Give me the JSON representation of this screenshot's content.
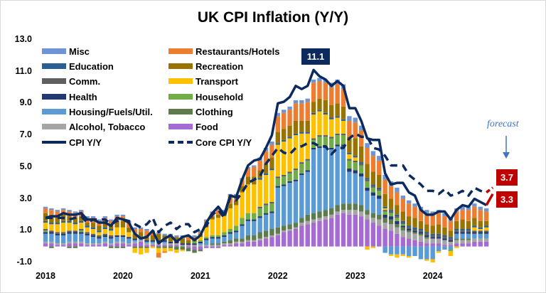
{
  "chart_data": {
    "type": "bar",
    "title": "UK CPI Inflation (Y/Y)",
    "xlabel": "",
    "ylabel": "",
    "ylim": [
      -1.0,
      13.0
    ],
    "yticks": [
      "13.0",
      "11.0",
      "9.0",
      "7.0",
      "5.0",
      "3.0",
      "1.0",
      "-1.0"
    ],
    "ytick_values": [
      13,
      11,
      9,
      7,
      5,
      3,
      1,
      -1
    ],
    "xtick_labels": [
      "2018",
      "2020",
      "2021",
      "2022",
      "2023",
      "2024"
    ],
    "xtick_category_index": [
      0,
      13,
      26,
      39,
      52,
      65
    ],
    "grid": false,
    "legend_position": "top-left",
    "stacked": true,
    "series": [
      {
        "name": "Food",
        "color": "#a66bd3",
        "values": [
          0.2,
          0.2,
          0.1,
          0.1,
          0.2,
          0.2,
          0.2,
          0.1,
          0.1,
          0.1,
          0.2,
          0.1,
          0.2,
          0.2,
          0.1,
          0.2,
          0.3,
          0.1,
          0.1,
          0.1,
          0.1,
          0.1,
          0.1,
          0.0,
          -0.1,
          -0.2,
          -0.2,
          -0.1,
          -0.1,
          -0.1,
          0.1,
          0.1,
          0.2,
          0.2,
          0.3,
          0.3,
          0.4,
          0.5,
          0.6,
          0.7,
          0.9,
          1.0,
          1.1,
          1.3,
          1.4,
          1.5,
          1.6,
          1.7,
          1.8,
          2.0,
          2.1,
          2.0,
          2.0,
          1.9,
          1.7,
          1.5,
          1.3,
          1.1,
          1.0,
          0.8,
          0.6,
          0.5,
          0.4,
          0.3,
          0.2,
          0.2,
          0.2,
          0.1,
          0.1,
          0.2,
          0.2,
          0.2,
          0.3,
          0.3,
          0.3
        ]
      },
      {
        "name": "Alcohol, Tobacco",
        "color": "#a5a5a5",
        "values": [
          0.1,
          0.1,
          0.1,
          0.1,
          0.1,
          0.1,
          0.1,
          0.1,
          0.1,
          0.1,
          0.1,
          0.1,
          0.1,
          0.1,
          0.1,
          0.1,
          0.1,
          0.1,
          0.1,
          0.1,
          0.1,
          0.1,
          0.1,
          0.1,
          0.1,
          0.1,
          0.1,
          0.1,
          0.1,
          0.1,
          0.1,
          0.1,
          0.1,
          0.1,
          0.1,
          0.1,
          0.1,
          0.1,
          0.1,
          0.1,
          0.1,
          0.1,
          0.1,
          0.2,
          0.2,
          0.2,
          0.2,
          0.2,
          0.2,
          0.2,
          0.2,
          0.3,
          0.3,
          0.3,
          0.3,
          0.3,
          0.4,
          0.4,
          0.4,
          0.4,
          0.4,
          0.4,
          0.4,
          0.4,
          0.3,
          0.3,
          0.3,
          0.3,
          0.2,
          0.2,
          0.2,
          0.2,
          0.2,
          0.2,
          0.2
        ]
      },
      {
        "name": "Clothing",
        "color": "#5e7b4e",
        "values": [
          0.0,
          -0.1,
          0.0,
          0.0,
          -0.1,
          -0.1,
          0.0,
          0.0,
          0.0,
          0.0,
          0.0,
          -0.1,
          -0.1,
          -0.1,
          0.0,
          -0.1,
          -0.1,
          -0.1,
          0.0,
          -0.1,
          -0.1,
          -0.1,
          -0.2,
          -0.2,
          -0.2,
          -0.2,
          -0.1,
          0.0,
          0.1,
          0.1,
          0.1,
          0.2,
          0.2,
          0.2,
          0.3,
          0.3,
          0.4,
          0.4,
          0.4,
          0.4,
          0.3,
          0.3,
          0.3,
          0.3,
          0.4,
          0.4,
          0.4,
          0.4,
          0.4,
          0.4,
          0.4,
          0.4,
          0.4,
          0.4,
          0.3,
          0.3,
          0.3,
          0.3,
          0.3,
          0.2,
          0.2,
          0.1,
          0.1,
          0.1,
          0.1,
          0.0,
          0.0,
          0.0,
          0.0,
          0.1,
          0.1,
          0.1,
          0.0,
          0.0,
          0.0
        ]
      },
      {
        "name": "Housing/Fuels/Util.",
        "color": "#5b9bd5",
        "values": [
          0.5,
          0.5,
          0.5,
          0.5,
          0.5,
          0.5,
          0.5,
          0.5,
          0.4,
          0.3,
          0.3,
          0.3,
          0.3,
          0.3,
          0.3,
          0.1,
          0.1,
          0.1,
          0.1,
          0.1,
          0.1,
          0.0,
          0.0,
          0.0,
          0.0,
          0.0,
          0.1,
          0.3,
          0.3,
          0.3,
          0.3,
          0.4,
          0.4,
          0.8,
          0.9,
          0.9,
          0.9,
          1.0,
          1.0,
          2.5,
          2.5,
          2.6,
          2.6,
          2.7,
          2.7,
          4.0,
          4.0,
          3.9,
          3.7,
          3.7,
          3.6,
          2.0,
          1.9,
          1.8,
          1.2,
          1.1,
          1.0,
          -0.4,
          -0.5,
          -0.5,
          -0.5,
          -0.6,
          -0.6,
          -0.8,
          -0.8,
          -0.8,
          -0.3,
          -0.2,
          -0.2,
          0.3,
          0.3,
          0.3,
          0.3,
          0.3,
          0.3
        ]
      },
      {
        "name": "Health",
        "color": "#23386e",
        "values": [
          0.1,
          0.1,
          0.1,
          0.1,
          0.1,
          0.1,
          0.1,
          0.1,
          0.1,
          0.1,
          0.1,
          0.1,
          0.1,
          0.1,
          0.1,
          0.1,
          0.1,
          0.1,
          0.1,
          0.1,
          0.1,
          0.1,
          0.1,
          0.1,
          0.1,
          0.1,
          0.1,
          0.1,
          0.1,
          0.1,
          0.1,
          0.1,
          0.1,
          0.1,
          0.1,
          0.1,
          0.1,
          0.1,
          0.1,
          0.1,
          0.1,
          0.1,
          0.1,
          0.1,
          0.1,
          0.1,
          0.1,
          0.1,
          0.1,
          0.1,
          0.1,
          0.2,
          0.2,
          0.2,
          0.2,
          0.2,
          0.2,
          0.2,
          0.2,
          0.2,
          0.1,
          0.1,
          0.1,
          0.1,
          0.1,
          0.1,
          0.1,
          0.1,
          0.1,
          0.1,
          0.1,
          0.1,
          0.1,
          0.1,
          0.1
        ]
      },
      {
        "name": "Household",
        "color": "#70ad47",
        "values": [
          0.1,
          0.0,
          0.0,
          0.0,
          0.0,
          0.0,
          0.1,
          0.0,
          0.0,
          0.0,
          0.0,
          0.0,
          0.0,
          0.0,
          0.0,
          0.0,
          0.0,
          0.0,
          0.0,
          0.0,
          0.0,
          0.0,
          0.0,
          0.0,
          0.0,
          0.1,
          0.1,
          0.1,
          0.1,
          0.1,
          0.2,
          0.2,
          0.3,
          0.4,
          0.4,
          0.4,
          0.5,
          0.5,
          0.5,
          0.5,
          0.5,
          0.5,
          0.6,
          0.6,
          0.6,
          0.5,
          0.6,
          0.6,
          0.6,
          0.6,
          0.6,
          0.5,
          0.5,
          0.5,
          0.4,
          0.3,
          0.3,
          0.2,
          0.2,
          0.2,
          0.1,
          0.0,
          0.0,
          0.0,
          0.0,
          0.0,
          0.0,
          0.0,
          -0.1,
          0.0,
          0.0,
          0.0,
          0.0,
          0.0,
          0.0
        ]
      },
      {
        "name": "Comm.",
        "color": "#5f5f5f",
        "values": [
          0.1,
          0.1,
          0.1,
          0.1,
          0.1,
          0.1,
          0.1,
          0.1,
          0.1,
          0.1,
          0.1,
          0.1,
          0.0,
          0.0,
          0.0,
          0.0,
          0.0,
          0.0,
          0.0,
          0.0,
          0.0,
          0.0,
          0.0,
          0.0,
          0.0,
          0.0,
          0.0,
          0.0,
          0.0,
          0.0,
          0.0,
          0.0,
          0.0,
          0.0,
          0.0,
          0.0,
          0.1,
          0.1,
          0.1,
          0.1,
          0.1,
          0.1,
          0.1,
          0.1,
          0.1,
          0.1,
          0.1,
          0.1,
          0.1,
          0.1,
          0.1,
          0.1,
          0.1,
          0.1,
          0.1,
          0.1,
          0.1,
          0.1,
          0.1,
          0.1,
          0.1,
          0.1,
          0.1,
          0.1,
          0.1,
          0.1,
          0.1,
          0.1,
          0.1,
          0.1,
          0.1,
          0.1,
          0.1,
          0.1,
          0.1
        ]
      },
      {
        "name": "Transport",
        "color": "#ffc000",
        "values": [
          0.4,
          0.4,
          0.5,
          0.6,
          0.5,
          0.4,
          0.4,
          0.3,
          0.3,
          0.2,
          0.3,
          0.3,
          0.5,
          0.5,
          0.3,
          -0.3,
          -0.4,
          -0.3,
          -0.1,
          -0.3,
          -0.2,
          -0.2,
          -0.2,
          -0.1,
          0.0,
          0.0,
          0.2,
          0.6,
          1.0,
          1.1,
          1.0,
          1.3,
          1.3,
          1.6,
          1.8,
          1.8,
          1.7,
          1.8,
          2.0,
          2.0,
          2.1,
          2.1,
          2.1,
          1.8,
          1.6,
          1.5,
          1.5,
          1.3,
          1.1,
          1.0,
          0.8,
          0.3,
          0.2,
          0.0,
          -0.2,
          -0.1,
          0.0,
          0.1,
          -0.1,
          -0.2,
          -0.1,
          -0.1,
          0.0,
          0.0,
          -0.1,
          -0.2,
          -0.1,
          0.0,
          -0.3,
          -0.1,
          0.0,
          0.0,
          0.2,
          0.1,
          0.2
        ]
      },
      {
        "name": "Education",
        "color": "#2a5f94",
        "values": [
          0.1,
          0.1,
          0.1,
          0.1,
          0.1,
          0.1,
          0.1,
          0.1,
          0.1,
          0.1,
          0.1,
          0.1,
          0.0,
          0.0,
          0.0,
          0.0,
          0.0,
          0.0,
          0.0,
          0.0,
          0.0,
          0.0,
          0.0,
          0.0,
          0.0,
          0.0,
          0.0,
          0.0,
          0.0,
          0.0,
          0.0,
          0.0,
          0.0,
          0.0,
          0.0,
          0.0,
          0.1,
          0.1,
          0.1,
          0.1,
          0.1,
          0.1,
          0.1,
          0.1,
          0.1,
          0.1,
          0.1,
          0.1,
          0.1,
          0.1,
          0.1,
          0.1,
          0.1,
          0.1,
          0.1,
          0.1,
          0.1,
          0.1,
          0.1,
          0.1,
          0.1,
          0.1,
          0.1,
          0.1,
          0.1,
          0.1,
          0.1,
          0.1,
          0.1,
          0.1,
          0.1,
          0.1,
          0.1,
          0.1,
          0.1
        ]
      },
      {
        "name": "Recreation",
        "color": "#997300",
        "values": [
          0.5,
          0.5,
          0.4,
          0.4,
          0.3,
          0.3,
          0.3,
          0.2,
          0.3,
          0.3,
          0.3,
          0.2,
          0.4,
          0.4,
          0.3,
          0.3,
          0.3,
          0.3,
          0.3,
          0.4,
          0.3,
          0.3,
          0.3,
          0.3,
          0.2,
          0.2,
          0.2,
          0.2,
          0.2,
          0.2,
          0.2,
          0.3,
          0.3,
          0.4,
          0.5,
          0.5,
          0.5,
          0.6,
          0.7,
          0.7,
          0.7,
          0.7,
          0.8,
          0.7,
          0.7,
          0.7,
          0.7,
          0.8,
          0.8,
          0.8,
          0.8,
          1.0,
          1.1,
          1.0,
          0.9,
          0.8,
          0.8,
          0.8,
          0.7,
          0.6,
          0.6,
          0.6,
          0.6,
          0.5,
          0.5,
          0.5,
          0.6,
          0.5,
          0.4,
          0.5,
          0.6,
          0.5,
          0.5,
          0.4,
          0.3
        ]
      },
      {
        "name": "Restaurants/Hotels",
        "color": "#ed7d31",
        "values": [
          0.3,
          0.3,
          0.3,
          0.3,
          0.3,
          0.3,
          0.3,
          0.3,
          0.3,
          0.3,
          0.3,
          0.3,
          0.3,
          0.3,
          0.3,
          0.3,
          0.2,
          0.3,
          0.2,
          -0.3,
          -0.1,
          0.1,
          0.0,
          0.1,
          0.2,
          0.1,
          0.1,
          0.2,
          0.2,
          0.3,
          0.1,
          0.5,
          0.3,
          0.4,
          0.5,
          0.6,
          0.6,
          0.8,
          0.8,
          1.0,
          1.0,
          1.0,
          1.1,
          1.1,
          1.2,
          1.2,
          1.1,
          1.1,
          1.1,
          1.2,
          1.1,
          1.0,
          1.0,
          1.0,
          1.0,
          1.0,
          0.9,
          0.9,
          0.8,
          0.8,
          0.8,
          0.8,
          0.7,
          0.7,
          0.7,
          0.7,
          0.7,
          0.7,
          0.6,
          0.6,
          0.6,
          0.7,
          0.7,
          0.7,
          0.6
        ]
      },
      {
        "name": "Misc",
        "color": "#6f94d4",
        "values": [
          0.1,
          0.1,
          0.1,
          0.1,
          0.1,
          0.1,
          0.1,
          0.1,
          0.1,
          0.1,
          0.1,
          0.1,
          0.1,
          0.1,
          0.1,
          0.1,
          0.1,
          0.1,
          0.1,
          0.1,
          0.1,
          0.1,
          0.1,
          0.1,
          0.1,
          0.1,
          0.1,
          0.1,
          0.1,
          0.1,
          0.1,
          0.1,
          0.1,
          0.1,
          0.1,
          0.1,
          0.2,
          0.2,
          0.2,
          0.2,
          0.2,
          0.2,
          0.2,
          0.2,
          0.2,
          0.2,
          0.2,
          0.2,
          0.3,
          0.3,
          0.3,
          0.3,
          0.3,
          0.3,
          0.3,
          0.3,
          0.3,
          0.3,
          0.3,
          0.3,
          0.2,
          0.2,
          0.2,
          0.2,
          0.2,
          0.2,
          0.2,
          0.2,
          0.2,
          0.2,
          0.2,
          0.2,
          0.2,
          0.2,
          0.2
        ]
      }
    ],
    "lines": [
      {
        "name": "CPI Y/Y",
        "color": "#0d2a5e",
        "style": "solid",
        "values": [
          1.8,
          1.9,
          1.9,
          2.1,
          2.0,
          2.0,
          2.1,
          1.7,
          1.7,
          1.5,
          1.5,
          1.3,
          1.8,
          1.7,
          1.5,
          0.8,
          0.5,
          0.6,
          1.0,
          0.2,
          0.5,
          0.7,
          0.3,
          0.6,
          0.7,
          0.4,
          0.7,
          1.5,
          2.1,
          2.5,
          2.0,
          3.2,
          3.1,
          4.2,
          5.1,
          5.4,
          5.5,
          6.2,
          7.0,
          9.0,
          9.1,
          9.4,
          10.1,
          9.9,
          10.1,
          11.1,
          10.7,
          10.5,
          10.1,
          10.4,
          10.1,
          8.7,
          8.7,
          7.9,
          6.8,
          6.7,
          6.7,
          4.6,
          3.9,
          4.0,
          4.0,
          3.4,
          3.2,
          2.3,
          2.0,
          2.0,
          2.2,
          2.2,
          1.7,
          2.3,
          2.6,
          2.5,
          3.0,
          2.8,
          2.6
        ]
      },
      {
        "name": "Core CPI Y/Y",
        "color": "#0d2a5e",
        "style": "dashed",
        "values": [
          1.8,
          1.8,
          1.8,
          1.8,
          1.7,
          1.8,
          1.9,
          1.5,
          1.7,
          1.7,
          1.7,
          1.4,
          1.6,
          1.7,
          1.6,
          1.4,
          1.2,
          1.4,
          1.8,
          0.9,
          1.3,
          1.5,
          1.1,
          1.4,
          1.4,
          0.9,
          1.1,
          1.3,
          2.0,
          2.3,
          1.8,
          3.1,
          2.9,
          3.4,
          4.0,
          4.2,
          4.4,
          5.2,
          5.7,
          6.2,
          5.9,
          5.8,
          6.2,
          6.3,
          6.5,
          6.5,
          6.3,
          6.3,
          5.8,
          6.2,
          6.2,
          6.8,
          7.1,
          6.9,
          6.9,
          6.2,
          6.1,
          5.7,
          5.1,
          5.1,
          5.1,
          4.5,
          4.2,
          3.9,
          3.5,
          3.5,
          3.3,
          3.6,
          3.2,
          3.3,
          3.5,
          3.2,
          3.7,
          3.5,
          3.4
        ]
      }
    ],
    "annotations": {
      "peak_label": "11.1",
      "forecast_text": "forecast",
      "forecast_core": "3.7",
      "forecast_cpi": "3.3",
      "forecast_color": "#c00000"
    }
  },
  "legend": [
    {
      "label": "Misc",
      "color": "#6f94d4",
      "kind": "swatch"
    },
    {
      "label": "Restaurants/Hotels",
      "color": "#ed7d31",
      "kind": "swatch"
    },
    {
      "label": "Education",
      "color": "#2a5f94",
      "kind": "swatch"
    },
    {
      "label": "Recreation",
      "color": "#997300",
      "kind": "swatch"
    },
    {
      "label": "Comm.",
      "color": "#5f5f5f",
      "kind": "swatch"
    },
    {
      "label": "Transport",
      "color": "#ffc000",
      "kind": "swatch"
    },
    {
      "label": "Health",
      "color": "#23386e",
      "kind": "swatch"
    },
    {
      "label": "Household",
      "color": "#70ad47",
      "kind": "swatch"
    },
    {
      "label": "Housing/Fuels/Util.",
      "color": "#5b9bd5",
      "kind": "swatch"
    },
    {
      "label": "Clothing",
      "color": "#5e7b4e",
      "kind": "swatch"
    },
    {
      "label": "Alcohol, Tobacco",
      "color": "#a5a5a5",
      "kind": "swatch"
    },
    {
      "label": "Food",
      "color": "#a66bd3",
      "kind": "swatch"
    },
    {
      "label": "CPI Y/Y",
      "color": "#0d2a5e",
      "kind": "line"
    },
    {
      "label": "Core CPI Y/Y",
      "color": "#0d2a5e",
      "kind": "dash"
    }
  ]
}
